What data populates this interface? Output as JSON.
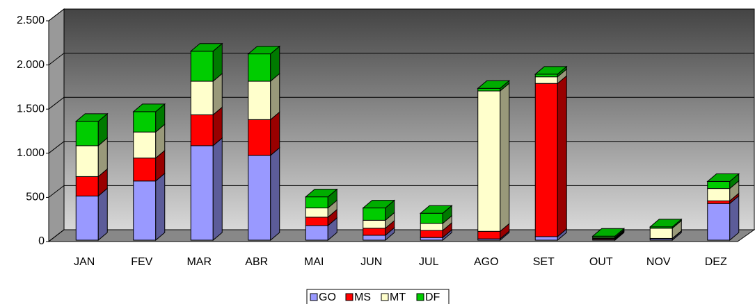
{
  "chart_data": {
    "type": "bar3d_stacked",
    "categories": [
      "JAN",
      "FEV",
      "MAR",
      "ABR",
      "MAI",
      "JUN",
      "JUL",
      "AGO",
      "SET",
      "OUT",
      "NOV",
      "DEZ"
    ],
    "series": [
      {
        "name": "GO",
        "color": "#9999ff",
        "values": [
          500,
          670,
          1070,
          960,
          165,
          55,
          30,
          15,
          40,
          10,
          15,
          415
        ]
      },
      {
        "name": "MS",
        "color": "#ff0000",
        "values": [
          220,
          260,
          350,
          405,
          95,
          80,
          80,
          85,
          1735,
          10,
          5,
          30
        ]
      },
      {
        "name": "MT",
        "color": "#ffffcc",
        "values": [
          350,
          295,
          380,
          435,
          105,
          90,
          80,
          1590,
          75,
          10,
          115,
          140
        ]
      },
      {
        "name": "DF",
        "color": "#00cc00",
        "values": [
          275,
          230,
          340,
          310,
          125,
          140,
          115,
          30,
          30,
          15,
          15,
          80
        ]
      }
    ],
    "ylim": [
      0,
      2500
    ],
    "yticks": [
      0,
      {
        "value": 500,
        "label": "500"
      },
      {
        "value": 1000,
        "label": "1.000"
      },
      {
        "value": 1500,
        "label": "1.500"
      },
      {
        "value": 2000,
        "label": "2.000"
      },
      {
        "value": 2500,
        "label": "2.500"
      }
    ],
    "grid": true,
    "legend": "bottom"
  }
}
